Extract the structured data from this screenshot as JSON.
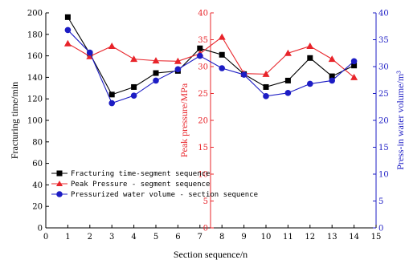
{
  "chart_data": {
    "type": "line",
    "xlabel": "Section sequence/n",
    "ylabel_left": "Fracturing time/min",
    "ylabel_middle": "Peak pressure/MPa",
    "ylabel_right": "Press-in water volume/m³",
    "x_ticks": [
      "0",
      "1",
      "2",
      "3",
      "4",
      "5",
      "6",
      "7",
      "8",
      "9",
      "10",
      "11",
      "12",
      "13",
      "14",
      "15"
    ],
    "xlim": [
      0,
      15
    ],
    "ylim_left": [
      0,
      200
    ],
    "y_left_ticks": [
      "0",
      "20",
      "40",
      "60",
      "80",
      "100",
      "120",
      "140",
      "160",
      "180",
      "200"
    ],
    "ylim_middle": [
      0,
      40
    ],
    "y_middle_ticks": [
      "0",
      "5",
      "10",
      "15",
      "20",
      "25",
      "30",
      "35",
      "40"
    ],
    "ylim_right": [
      0,
      40
    ],
    "y_right_ticks": [
      "0",
      "5",
      "10",
      "15",
      "20",
      "25",
      "30",
      "35",
      "40"
    ],
    "x": [
      1,
      2,
      3,
      4,
      5,
      6,
      7,
      8,
      9,
      10,
      11,
      12,
      13,
      14
    ],
    "series": [
      {
        "name": "Fracturing time-segment sequence",
        "axis": "left",
        "color": "#000000",
        "marker": "square",
        "values": [
          196,
          162,
          124,
          131,
          144,
          146,
          167,
          161,
          143,
          131,
          137,
          158,
          141,
          151
        ]
      },
      {
        "name": "Peak Pressure - segment sequence",
        "axis": "middle",
        "color": "#e8242a",
        "marker": "triangle",
        "values": [
          34.3,
          31.9,
          33.8,
          31.4,
          31.1,
          31.0,
          32.4,
          35.5,
          28.7,
          28.6,
          32.5,
          33.8,
          31.4,
          28.0
        ]
      },
      {
        "name": "Pressurized water volume - section sequence",
        "axis": "right",
        "color": "#1c1cc4",
        "marker": "circle",
        "values": [
          36.8,
          32.6,
          23.2,
          24.6,
          27.4,
          29.5,
          32.0,
          29.7,
          28.5,
          24.5,
          25.1,
          26.8,
          27.4,
          31.0
        ]
      }
    ],
    "legend_position": "lower-left",
    "grid": false
  }
}
